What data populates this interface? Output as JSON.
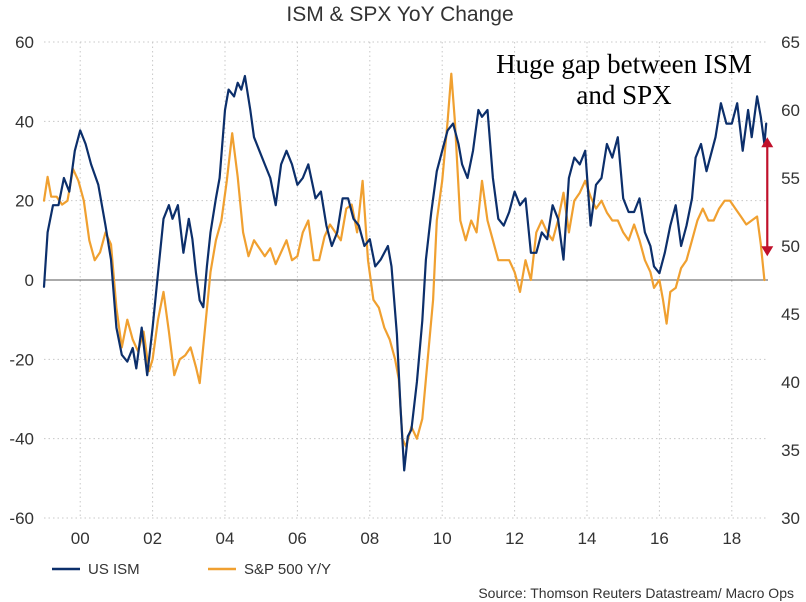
{
  "chart_data": {
    "type": "line",
    "title": "ISM & SPX YoY Change",
    "xlabel": "",
    "ylabel": "",
    "x_range": [
      1999.0,
      2019.0
    ],
    "x_ticks": [
      2000,
      2002,
      2004,
      2006,
      2008,
      2010,
      2012,
      2014,
      2016,
      2018
    ],
    "x_tick_labels": [
      "00",
      "02",
      "04",
      "06",
      "08",
      "10",
      "12",
      "14",
      "16",
      "18"
    ],
    "y_left": {
      "range": [
        -60,
        60
      ],
      "ticks": [
        60,
        40,
        20,
        0,
        -20,
        -40,
        -60
      ],
      "tick_labels": [
        "60",
        "40",
        "20",
        "0",
        "-20",
        "-40",
        "-60"
      ]
    },
    "y_right": {
      "range": [
        30,
        65
      ],
      "ticks": [
        65,
        60,
        55,
        50,
        45,
        40,
        35,
        30
      ],
      "tick_labels": [
        "65",
        "60",
        "55",
        "50",
        "45",
        "40",
        "35",
        "30"
      ]
    },
    "grid": true,
    "zero_line": true,
    "legend_position": "bottom-left",
    "series": [
      {
        "name": "US ISM",
        "axis": "right",
        "color": "#0c2f6b",
        "points": [
          [
            1999.0,
            47.0
          ],
          [
            1999.1,
            51.0
          ],
          [
            1999.25,
            53.0
          ],
          [
            1999.4,
            53.0
          ],
          [
            1999.55,
            55.0
          ],
          [
            1999.7,
            54.0
          ],
          [
            1999.85,
            57.0
          ],
          [
            2000.0,
            58.5
          ],
          [
            2000.15,
            57.5
          ],
          [
            2000.3,
            56.0
          ],
          [
            2000.5,
            54.5
          ],
          [
            2000.7,
            51.5
          ],
          [
            2000.85,
            49.0
          ],
          [
            2001.0,
            44.0
          ],
          [
            2001.15,
            42.0
          ],
          [
            2001.3,
            41.5
          ],
          [
            2001.45,
            42.5
          ],
          [
            2001.55,
            41.0
          ],
          [
            2001.7,
            44.0
          ],
          [
            2001.85,
            40.5
          ],
          [
            2002.0,
            44.0
          ],
          [
            2002.15,
            48.0
          ],
          [
            2002.3,
            52.0
          ],
          [
            2002.45,
            53.0
          ],
          [
            2002.55,
            52.0
          ],
          [
            2002.7,
            53.0
          ],
          [
            2002.85,
            49.5
          ],
          [
            2003.0,
            52.0
          ],
          [
            2003.1,
            50.5
          ],
          [
            2003.2,
            48.0
          ],
          [
            2003.3,
            46.0
          ],
          [
            2003.4,
            45.5
          ],
          [
            2003.5,
            48.5
          ],
          [
            2003.6,
            51.0
          ],
          [
            2003.75,
            53.5
          ],
          [
            2003.85,
            55.0
          ],
          [
            2004.0,
            60.0
          ],
          [
            2004.1,
            61.5
          ],
          [
            2004.25,
            61.0
          ],
          [
            2004.35,
            62.0
          ],
          [
            2004.45,
            61.5
          ],
          [
            2004.55,
            62.5
          ],
          [
            2004.7,
            60.0
          ],
          [
            2004.8,
            58.0
          ],
          [
            2004.95,
            57.0
          ],
          [
            2005.1,
            56.0
          ],
          [
            2005.25,
            55.0
          ],
          [
            2005.4,
            53.0
          ],
          [
            2005.55,
            56.0
          ],
          [
            2005.7,
            57.0
          ],
          [
            2005.85,
            56.0
          ],
          [
            2006.0,
            54.5
          ],
          [
            2006.15,
            55.0
          ],
          [
            2006.3,
            56.0
          ],
          [
            2006.5,
            53.5
          ],
          [
            2006.65,
            54.0
          ],
          [
            2006.8,
            51.5
          ],
          [
            2006.95,
            50.0
          ],
          [
            2007.1,
            51.0
          ],
          [
            2007.25,
            53.5
          ],
          [
            2007.4,
            53.5
          ],
          [
            2007.55,
            52.0
          ],
          [
            2007.7,
            51.5
          ],
          [
            2007.85,
            50.0
          ],
          [
            2008.0,
            50.5
          ],
          [
            2008.15,
            48.5
          ],
          [
            2008.3,
            49.0
          ],
          [
            2008.5,
            50.0
          ],
          [
            2008.6,
            48.5
          ],
          [
            2008.75,
            43.5
          ],
          [
            2008.85,
            38.0
          ],
          [
            2008.95,
            33.5
          ],
          [
            2009.05,
            36.0
          ],
          [
            2009.15,
            36.5
          ],
          [
            2009.3,
            40.0
          ],
          [
            2009.45,
            44.5
          ],
          [
            2009.55,
            49.0
          ],
          [
            2009.7,
            52.5
          ],
          [
            2009.85,
            55.5
          ],
          [
            2010.0,
            57.0
          ],
          [
            2010.15,
            58.5
          ],
          [
            2010.3,
            59.0
          ],
          [
            2010.45,
            57.5
          ],
          [
            2010.55,
            56.0
          ],
          [
            2010.7,
            55.0
          ],
          [
            2010.85,
            57.0
          ],
          [
            2011.0,
            60.0
          ],
          [
            2011.1,
            59.5
          ],
          [
            2011.25,
            60.0
          ],
          [
            2011.4,
            55.0
          ],
          [
            2011.55,
            52.0
          ],
          [
            2011.7,
            51.5
          ],
          [
            2011.85,
            52.5
          ],
          [
            2012.0,
            54.0
          ],
          [
            2012.15,
            53.0
          ],
          [
            2012.3,
            53.5
          ],
          [
            2012.45,
            49.5
          ],
          [
            2012.6,
            49.5
          ],
          [
            2012.75,
            51.0
          ],
          [
            2012.9,
            50.5
          ],
          [
            2013.05,
            53.0
          ],
          [
            2013.2,
            52.0
          ],
          [
            2013.35,
            49.0
          ],
          [
            2013.5,
            55.0
          ],
          [
            2013.65,
            56.5
          ],
          [
            2013.8,
            56.0
          ],
          [
            2013.95,
            57.0
          ],
          [
            2014.1,
            51.5
          ],
          [
            2014.25,
            54.5
          ],
          [
            2014.4,
            55.0
          ],
          [
            2014.55,
            57.5
          ],
          [
            2014.7,
            56.5
          ],
          [
            2014.85,
            58.0
          ],
          [
            2015.0,
            53.5
          ],
          [
            2015.15,
            52.5
          ],
          [
            2015.3,
            52.5
          ],
          [
            2015.45,
            53.5
          ],
          [
            2015.6,
            51.0
          ],
          [
            2015.75,
            50.0
          ],
          [
            2015.85,
            48.5
          ],
          [
            2016.0,
            48.0
          ],
          [
            2016.15,
            49.5
          ],
          [
            2016.3,
            51.5
          ],
          [
            2016.45,
            53.0
          ],
          [
            2016.6,
            50.0
          ],
          [
            2016.75,
            51.5
          ],
          [
            2016.9,
            53.5
          ],
          [
            2017.0,
            56.5
          ],
          [
            2017.15,
            57.5
          ],
          [
            2017.3,
            55.5
          ],
          [
            2017.45,
            57.0
          ],
          [
            2017.55,
            58.0
          ],
          [
            2017.7,
            60.5
          ],
          [
            2017.85,
            59.0
          ],
          [
            2018.0,
            59.0
          ],
          [
            2018.15,
            60.5
          ],
          [
            2018.3,
            57.0
          ],
          [
            2018.45,
            60.0
          ],
          [
            2018.55,
            58.0
          ],
          [
            2018.7,
            61.0
          ],
          [
            2018.8,
            59.5
          ],
          [
            2018.9,
            57.5
          ],
          [
            2018.95,
            59.0
          ]
        ]
      },
      {
        "name": "S&P 500 Y/Y",
        "axis": "left",
        "color": "#f0a030",
        "points": [
          [
            1999.0,
            20.0
          ],
          [
            1999.1,
            26.0
          ],
          [
            1999.2,
            21.0
          ],
          [
            1999.35,
            21.0
          ],
          [
            1999.5,
            19.0
          ],
          [
            1999.65,
            20.0
          ],
          [
            1999.8,
            28.0
          ],
          [
            1999.95,
            25.0
          ],
          [
            2000.1,
            20.0
          ],
          [
            2000.25,
            10.0
          ],
          [
            2000.4,
            5.0
          ],
          [
            2000.55,
            7.0
          ],
          [
            2000.7,
            12.0
          ],
          [
            2000.85,
            9.0
          ],
          [
            2001.0,
            -7.0
          ],
          [
            2001.15,
            -17.0
          ],
          [
            2001.3,
            -10.0
          ],
          [
            2001.45,
            -15.0
          ],
          [
            2001.6,
            -18.0
          ],
          [
            2001.75,
            -13.0
          ],
          [
            2001.9,
            -23.0
          ],
          [
            2002.0,
            -20.0
          ],
          [
            2002.15,
            -10.0
          ],
          [
            2002.3,
            -3.0
          ],
          [
            2002.45,
            -13.0
          ],
          [
            2002.6,
            -24.0
          ],
          [
            2002.75,
            -20.0
          ],
          [
            2002.9,
            -19.0
          ],
          [
            2003.05,
            -17.0
          ],
          [
            2003.2,
            -22.0
          ],
          [
            2003.3,
            -26.0
          ],
          [
            2003.45,
            -12.0
          ],
          [
            2003.6,
            2.0
          ],
          [
            2003.75,
            10.0
          ],
          [
            2003.9,
            15.0
          ],
          [
            2004.05,
            25.0
          ],
          [
            2004.2,
            37.0
          ],
          [
            2004.35,
            26.0
          ],
          [
            2004.5,
            12.0
          ],
          [
            2004.65,
            6.0
          ],
          [
            2004.8,
            10.0
          ],
          [
            2004.95,
            8.0
          ],
          [
            2005.1,
            6.0
          ],
          [
            2005.25,
            8.0
          ],
          [
            2005.4,
            4.0
          ],
          [
            2005.55,
            7.0
          ],
          [
            2005.7,
            10.0
          ],
          [
            2005.85,
            5.0
          ],
          [
            2006.0,
            6.0
          ],
          [
            2006.15,
            12.0
          ],
          [
            2006.3,
            15.0
          ],
          [
            2006.45,
            5.0
          ],
          [
            2006.6,
            5.0
          ],
          [
            2006.75,
            11.0
          ],
          [
            2006.9,
            14.0
          ],
          [
            2007.05,
            12.0
          ],
          [
            2007.2,
            10.0
          ],
          [
            2007.35,
            18.0
          ],
          [
            2007.5,
            19.0
          ],
          [
            2007.65,
            12.0
          ],
          [
            2007.8,
            25.0
          ],
          [
            2007.95,
            5.0
          ],
          [
            2008.1,
            -5.0
          ],
          [
            2008.25,
            -7.0
          ],
          [
            2008.4,
            -12.0
          ],
          [
            2008.55,
            -15.0
          ],
          [
            2008.7,
            -20.0
          ],
          [
            2008.8,
            -25.0
          ],
          [
            2008.9,
            -40.0
          ],
          [
            2009.0,
            -42.0
          ],
          [
            2009.15,
            -37.0
          ],
          [
            2009.3,
            -40.0
          ],
          [
            2009.45,
            -35.0
          ],
          [
            2009.6,
            -20.0
          ],
          [
            2009.75,
            -5.0
          ],
          [
            2009.85,
            15.0
          ],
          [
            2010.0,
            25.0
          ],
          [
            2010.15,
            40.0
          ],
          [
            2010.25,
            52.0
          ],
          [
            2010.35,
            40.0
          ],
          [
            2010.5,
            15.0
          ],
          [
            2010.65,
            10.0
          ],
          [
            2010.8,
            15.0
          ],
          [
            2010.95,
            12.0
          ],
          [
            2011.1,
            25.0
          ],
          [
            2011.25,
            15.0
          ],
          [
            2011.4,
            10.0
          ],
          [
            2011.55,
            5.0
          ],
          [
            2011.7,
            5.0
          ],
          [
            2011.85,
            5.0
          ],
          [
            2012.0,
            2.0
          ],
          [
            2012.15,
            -3.0
          ],
          [
            2012.3,
            5.0
          ],
          [
            2012.45,
            0.0
          ],
          [
            2012.6,
            12.0
          ],
          [
            2012.75,
            15.0
          ],
          [
            2012.9,
            12.0
          ],
          [
            2013.05,
            10.0
          ],
          [
            2013.2,
            15.0
          ],
          [
            2013.35,
            22.0
          ],
          [
            2013.5,
            12.0
          ],
          [
            2013.65,
            20.0
          ],
          [
            2013.8,
            22.0
          ],
          [
            2013.95,
            25.0
          ],
          [
            2014.1,
            21.0
          ],
          [
            2014.25,
            18.0
          ],
          [
            2014.4,
            20.0
          ],
          [
            2014.55,
            17.0
          ],
          [
            2014.7,
            15.0
          ],
          [
            2014.85,
            15.0
          ],
          [
            2015.0,
            12.0
          ],
          [
            2015.15,
            10.0
          ],
          [
            2015.3,
            14.0
          ],
          [
            2015.45,
            10.0
          ],
          [
            2015.6,
            5.0
          ],
          [
            2015.75,
            2.0
          ],
          [
            2015.85,
            -2.0
          ],
          [
            2016.0,
            0.0
          ],
          [
            2016.1,
            -5.0
          ],
          [
            2016.2,
            -11.0
          ],
          [
            2016.3,
            -3.0
          ],
          [
            2016.45,
            -2.0
          ],
          [
            2016.6,
            3.0
          ],
          [
            2016.75,
            5.0
          ],
          [
            2016.9,
            10.0
          ],
          [
            2017.05,
            15.0
          ],
          [
            2017.2,
            18.0
          ],
          [
            2017.35,
            15.0
          ],
          [
            2017.5,
            15.0
          ],
          [
            2017.65,
            18.0
          ],
          [
            2017.8,
            20.0
          ],
          [
            2017.95,
            20.0
          ],
          [
            2018.1,
            18.0
          ],
          [
            2018.25,
            16.0
          ],
          [
            2018.4,
            14.0
          ],
          [
            2018.55,
            15.0
          ],
          [
            2018.7,
            16.0
          ],
          [
            2018.8,
            9.0
          ],
          [
            2018.9,
            0.0
          ]
        ]
      }
    ],
    "annotations": {
      "text_lines": [
        "Huge gap between ISM",
        "and SPX"
      ],
      "arrow_x": 2018.98,
      "arrow_from_left_value": 36,
      "arrow_to_left_value": 6,
      "arrow_color": "#c0112b"
    },
    "source": "Source: Thomson Reuters Datastream/ Macro Ops"
  }
}
